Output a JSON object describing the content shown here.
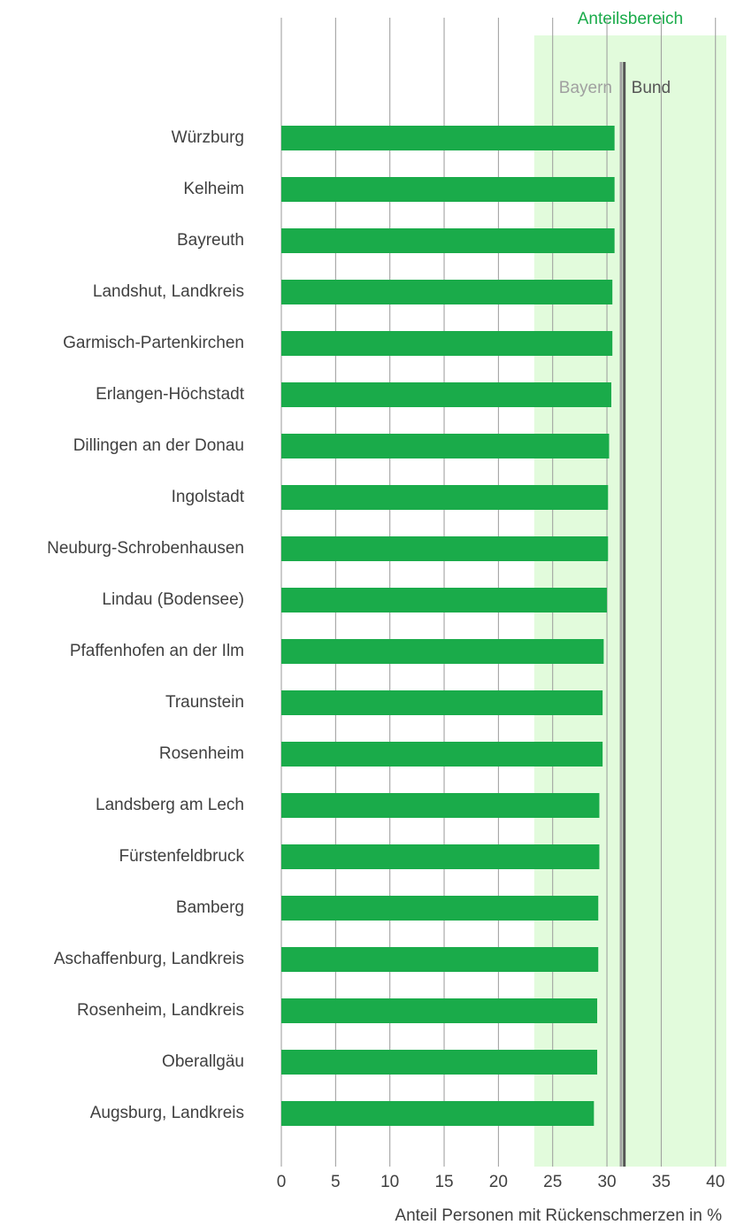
{
  "chart_data": {
    "type": "bar",
    "orientation": "horizontal",
    "categories": [
      "Würzburg",
      "Kelheim",
      "Bayreuth",
      "Landshut, Landkreis",
      "Garmisch-Partenkirchen",
      "Erlangen-Höchstadt",
      "Dillingen an der Donau",
      "Ingolstadt",
      "Neuburg-Schrobenhausen",
      "Lindau (Bodensee)",
      "Pfaffenhofen an der Ilm",
      "Traunstein",
      "Rosenheim",
      "Landsberg am Lech",
      "Fürstenfeldbruck",
      "Bamberg",
      "Aschaffenburg, Landkreis",
      "Rosenheim, Landkreis",
      "Oberallgäu",
      "Augsburg, Landkreis"
    ],
    "values": [
      30.7,
      30.7,
      30.7,
      30.5,
      30.5,
      30.4,
      30.2,
      30.1,
      30.1,
      30.0,
      29.7,
      29.6,
      29.6,
      29.3,
      29.3,
      29.2,
      29.2,
      29.1,
      29.1,
      28.8
    ],
    "color": "#1aab4a",
    "xlabel": "Anteil Personen mit Rückenschmerzen in %",
    "xlim": [
      0,
      41
    ],
    "xticks": [
      0,
      5,
      10,
      15,
      20,
      25,
      30,
      35,
      40
    ],
    "grid": true,
    "band": {
      "label": "Anteilsbereich",
      "range": [
        23.3,
        41
      ],
      "color": "#e2fbdc",
      "label_color": "#1aab4a"
    },
    "reference_lines": [
      {
        "name": "Bayern",
        "value": 31.3,
        "color": "#a0a0a0"
      },
      {
        "name": "Bund",
        "value": 31.6,
        "color": "#555555"
      }
    ]
  }
}
